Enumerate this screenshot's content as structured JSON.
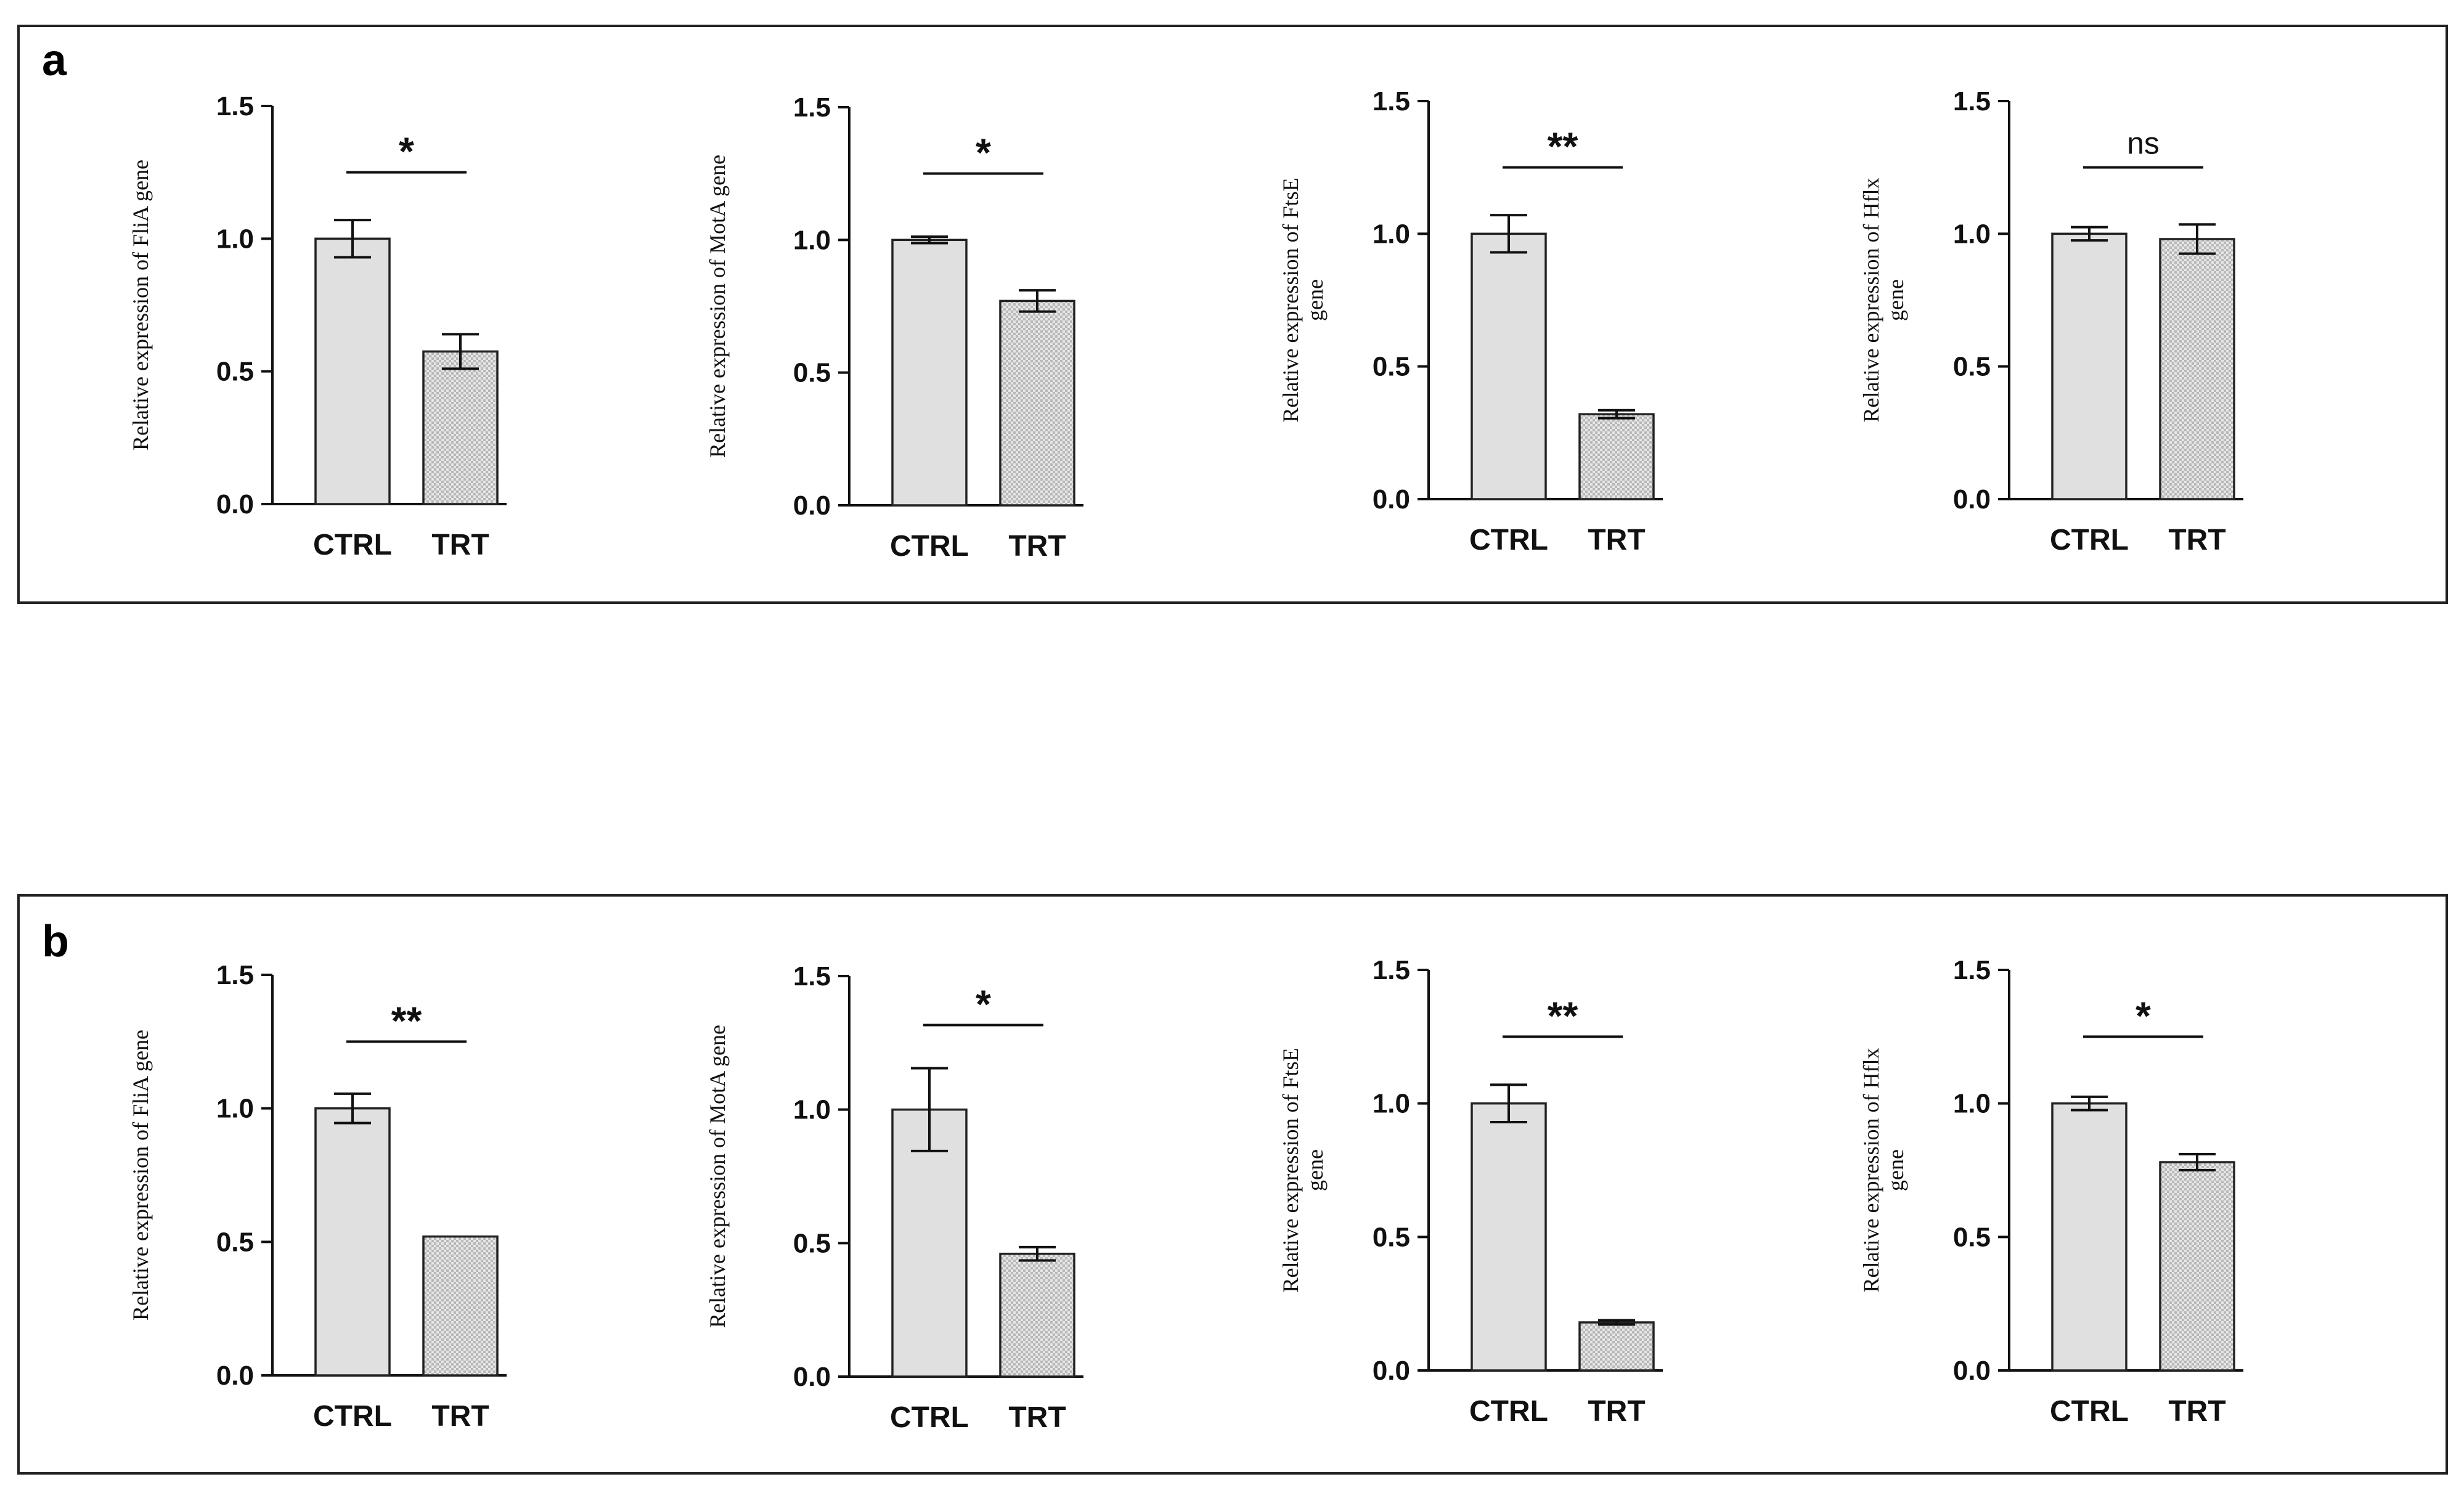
{
  "panels": [
    {
      "letter": "a",
      "charts": [
        {
          "type": "bar",
          "title": "",
          "ylabel": [
            "Relative expression of FliA gene"
          ],
          "categories": [
            "CTRL",
            "TRT"
          ],
          "values": [
            1.0,
            0.575
          ],
          "errors": [
            0.07,
            0.065
          ],
          "ylim": [
            0,
            1.5
          ],
          "yticks": [
            "0.0",
            "0.5",
            "1.0",
            "1.5"
          ],
          "significance": "*"
        },
        {
          "type": "bar",
          "title": "",
          "ylabel": [
            "Relative expression of MotA gene"
          ],
          "categories": [
            "CTRL",
            "TRT"
          ],
          "values": [
            1.0,
            0.77
          ],
          "errors": [
            0.012,
            0.04
          ],
          "ylim": [
            0,
            1.5
          ],
          "yticks": [
            "0.0",
            "0.5",
            "1.0",
            "1.5"
          ],
          "significance": "*"
        },
        {
          "type": "bar",
          "title": "",
          "ylabel": [
            "Relative expression of FtsE",
            "gene"
          ],
          "categories": [
            "CTRL",
            "TRT"
          ],
          "values": [
            1.0,
            0.32
          ],
          "errors": [
            0.07,
            0.015
          ],
          "ylim": [
            0,
            1.5
          ],
          "yticks": [
            "0.0",
            "0.5",
            "1.0",
            "1.5"
          ],
          "significance": "**"
        },
        {
          "type": "bar",
          "title": "",
          "ylabel": [
            "Relative expression of Hflx",
            "gene"
          ],
          "categories": [
            "CTRL",
            "TRT"
          ],
          "values": [
            1.0,
            0.98
          ],
          "errors": [
            0.025,
            0.055
          ],
          "ylim": [
            0,
            1.5
          ],
          "yticks": [
            "0.0",
            "0.5",
            "1.0",
            "1.5"
          ],
          "significance": "ns"
        }
      ]
    },
    {
      "letter": "b",
      "charts": [
        {
          "type": "bar",
          "title": "",
          "ylabel": [
            "Relative expression of FliA gene"
          ],
          "categories": [
            "CTRL",
            "TRT"
          ],
          "values": [
            1.0,
            0.52
          ],
          "errors": [
            0.055,
            0.0
          ],
          "ylim": [
            0,
            1.5
          ],
          "yticks": [
            "0.0",
            "0.5",
            "1.0",
            "1.5"
          ],
          "significance": "**"
        },
        {
          "type": "bar",
          "title": "",
          "ylabel": [
            "Relative expression of MotA gene"
          ],
          "categories": [
            "CTRL",
            "TRT"
          ],
          "values": [
            1.0,
            0.46
          ],
          "errors": [
            0.155,
            0.025
          ],
          "ylim": [
            0,
            1.5
          ],
          "yticks": [
            "0.0",
            "0.5",
            "1.0",
            "1.5"
          ],
          "significance": "*"
        },
        {
          "type": "bar",
          "title": "",
          "ylabel": [
            "Relative expression of FtsE",
            "gene"
          ],
          "categories": [
            "CTRL",
            "TRT"
          ],
          "values": [
            1.0,
            0.18
          ],
          "errors": [
            0.07,
            0.008
          ],
          "ylim": [
            0,
            1.5
          ],
          "yticks": [
            "0.0",
            "0.5",
            "1.0",
            "1.5"
          ],
          "significance": "**"
        },
        {
          "type": "bar",
          "title": "",
          "ylabel": [
            "Relative expression of Hflx",
            "gene"
          ],
          "categories": [
            "CTRL",
            "TRT"
          ],
          "values": [
            1.0,
            0.78
          ],
          "errors": [
            0.025,
            0.03
          ],
          "ylim": [
            0,
            1.5
          ],
          "yticks": [
            "0.0",
            "0.5",
            "1.0",
            "1.5"
          ],
          "significance": "*"
        }
      ]
    }
  ],
  "colors": {
    "ctrl_fill": "#e0e0e0",
    "trt_fill": "#c8c8c8",
    "stroke": "#222222"
  }
}
